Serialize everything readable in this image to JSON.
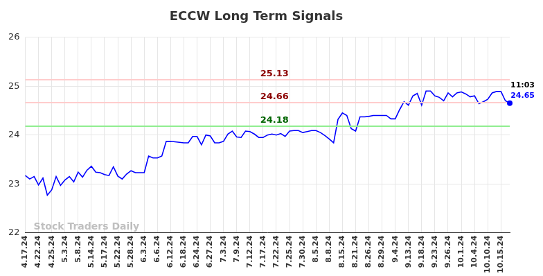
{
  "chart_data": {
    "type": "line",
    "title": "ECCW Long Term Signals",
    "categories": [
      "4.17.24",
      null,
      null,
      "4.22.24",
      null,
      null,
      "4.25.24",
      null,
      null,
      "5.3.24",
      null,
      null,
      "5.8.24",
      null,
      null,
      "5.14.24",
      null,
      null,
      "5.17.24",
      null,
      null,
      "5.22.24",
      null,
      null,
      "5.28.24",
      null,
      null,
      "6.3.24",
      null,
      null,
      "6.6.24",
      null,
      null,
      "6.12.24",
      null,
      null,
      "6.18.24",
      null,
      null,
      "6.24.24",
      null,
      null,
      "6.27.24",
      null,
      null,
      "7.3.24",
      null,
      null,
      "7.9.24",
      null,
      null,
      "7.12.24",
      null,
      null,
      "7.17.24",
      null,
      null,
      "7.22.24",
      null,
      null,
      "7.25.24",
      null,
      null,
      "7.30.24",
      null,
      null,
      "8.5.24",
      null,
      null,
      "8.8.24",
      null,
      null,
      "8.15.24",
      null,
      null,
      "8.21.24",
      null,
      null,
      "8.26.24",
      null,
      null,
      "8.29.24",
      null,
      null,
      "9.4.24",
      null,
      null,
      "9.13.24",
      null,
      null,
      "9.18.24",
      null,
      null,
      "9.23.24",
      null,
      null,
      "9.26.24",
      null,
      null,
      "10.1.24",
      null,
      null,
      "10.4.24",
      null,
      null,
      "10.10.24",
      null,
      null,
      "10.15.24",
      null,
      null
    ],
    "values": [
      23.17,
      23.1,
      23.15,
      22.98,
      23.12,
      22.77,
      22.88,
      23.15,
      22.97,
      23.08,
      23.15,
      23.04,
      23.24,
      23.14,
      23.28,
      23.36,
      23.24,
      23.23,
      23.19,
      23.17,
      23.35,
      23.16,
      23.1,
      23.2,
      23.27,
      23.23,
      23.23,
      23.23,
      23.57,
      23.53,
      23.53,
      23.57,
      23.87,
      23.87,
      23.86,
      23.85,
      23.84,
      23.84,
      23.97,
      23.97,
      23.8,
      24.0,
      23.98,
      23.84,
      23.84,
      23.87,
      24.02,
      24.08,
      23.96,
      23.95,
      24.08,
      24.07,
      24.02,
      23.95,
      23.95,
      24.0,
      24.02,
      24.0,
      24.03,
      23.97,
      24.08,
      24.09,
      24.09,
      24.05,
      24.07,
      24.09,
      24.09,
      24.05,
      23.99,
      23.92,
      23.84,
      24.32,
      24.45,
      24.4,
      24.13,
      24.08,
      24.37,
      24.37,
      24.38,
      24.4,
      24.4,
      24.4,
      24.4,
      24.33,
      24.33,
      24.52,
      24.68,
      24.61,
      24.8,
      24.85,
      24.61,
      24.9,
      24.9,
      24.8,
      24.77,
      24.7,
      24.86,
      24.78,
      24.86,
      24.88,
      24.84,
      24.78,
      24.8,
      24.64,
      24.68,
      24.73,
      24.86,
      24.89,
      24.89,
      24.7,
      24.65
    ],
    "color": "#0000ff",
    "ylim": [
      22,
      26
    ],
    "yticks": [
      22,
      23,
      24,
      25,
      26
    ],
    "grid": true,
    "hlines": [
      {
        "value": 25.13,
        "color": "#ffcccc"
      },
      {
        "value": 24.66,
        "color": "#ffcccc"
      },
      {
        "value": 24.18,
        "color": "#90ee90"
      }
    ],
    "time_label": "11:03",
    "watermark": "Stock Traders Daily"
  }
}
